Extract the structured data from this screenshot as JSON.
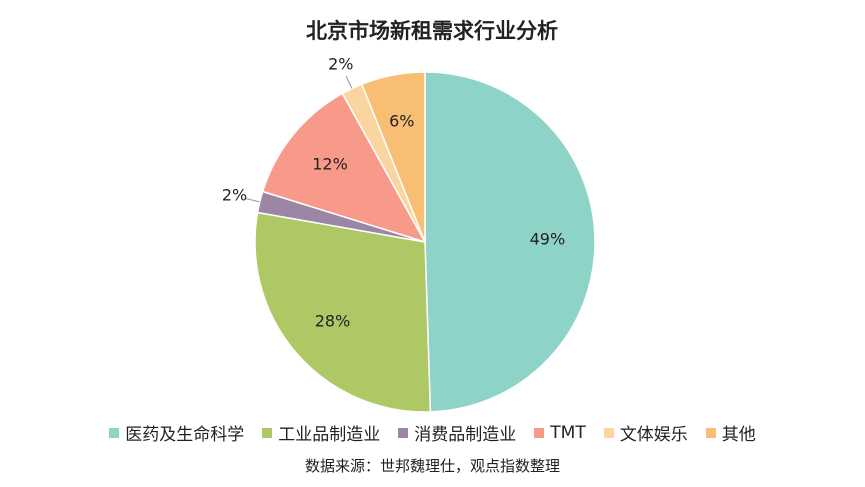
{
  "chart_data": {
    "type": "pie",
    "title": "北京市场新租需求行业分析",
    "categories": [
      "医药及生命科学",
      "工业品制造业",
      "消费品制造业",
      "TMT",
      "文体娱乐",
      "其他"
    ],
    "values": [
      49,
      28,
      2,
      12,
      2,
      6
    ],
    "value_labels": [
      "49%",
      "28%",
      "2%",
      "12%",
      "2%",
      "6%"
    ],
    "colors": [
      "#8ed3c7",
      "#afc866",
      "#9b86a6",
      "#f79a8a",
      "#fbd5a0",
      "#f8be73"
    ],
    "legend": "bottom",
    "source": "数据来源：世邦魏理仕，观点指数整理"
  }
}
